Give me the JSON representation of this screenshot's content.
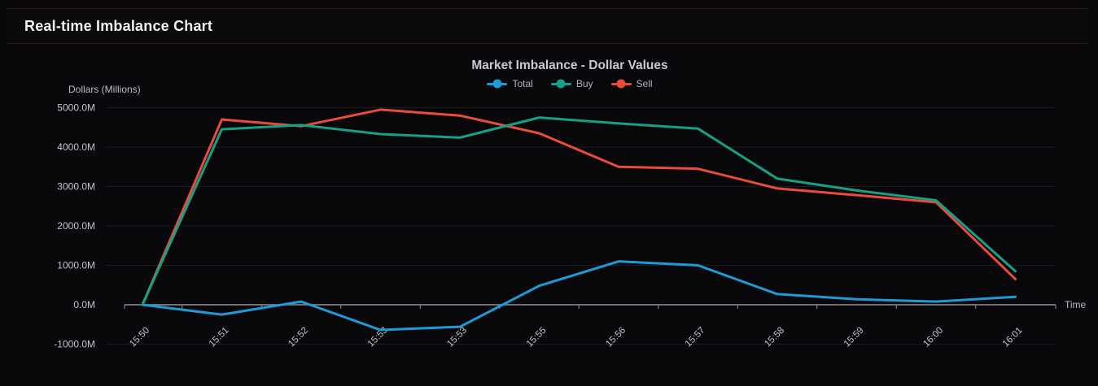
{
  "header": {
    "title": "Real-time Imbalance Chart"
  },
  "chart_data": {
    "type": "line",
    "title": "Market Imbalance - Dollar Values",
    "y_axis_label": "Dollars (Millions)",
    "x_axis_label": "Time",
    "categories": [
      "15:50",
      "15:51",
      "15:52",
      "15:53",
      "15:53",
      "15:55",
      "15:56",
      "15:57",
      "15:58",
      "15:59",
      "16:00",
      "16:01"
    ],
    "series": [
      {
        "name": "Total",
        "color": "#1e9bd7",
        "values": [
          0,
          -250,
          80,
          -640,
          -560,
          480,
          1100,
          1000,
          270,
          140,
          80,
          200
        ]
      },
      {
        "name": "Buy",
        "color": "#16a085",
        "values": [
          0,
          4450,
          4560,
          4330,
          4240,
          4750,
          4600,
          4470,
          3200,
          2900,
          2650,
          850
        ]
      },
      {
        "name": "Sell",
        "color": "#eb4b3a",
        "values": [
          0,
          4700,
          4530,
          4950,
          4800,
          4350,
          3500,
          3450,
          2950,
          2780,
          2600,
          650
        ]
      }
    ],
    "ylim": [
      -1000,
      5000
    ],
    "y_ticks": [
      5000,
      4000,
      3000,
      2000,
      1000,
      0,
      -1000
    ],
    "y_tick_labels": [
      "5000.0M",
      "4000.0M",
      "3000.0M",
      "2000.0M",
      "1000.0M",
      "0.0M",
      "-1000.0M"
    ],
    "grid": true,
    "legend_position": "top",
    "legend": [
      "Total",
      "Buy",
      "Sell"
    ]
  },
  "appearance": {
    "page_background": "#08080a",
    "panel_header_background": "#0c0a0b",
    "panel_border_color": "#331414",
    "grid_color": "#1d1d21",
    "axis_color": "#8f8f96",
    "tick_color": "#8f8f96",
    "axis_label_color": "#c4c4cb",
    "title_color": "#f2f2f2",
    "chart_title_color": "#cbc7d4",
    "legend_text_color": "#b5b5bd"
  }
}
